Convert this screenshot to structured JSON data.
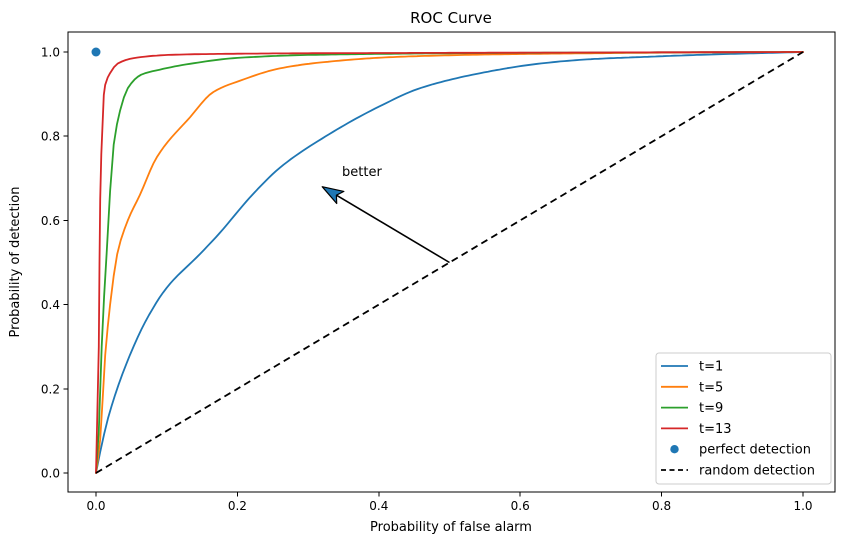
{
  "figure": {
    "title": "ROC Curve",
    "xlabel": "Probability of false alarm",
    "ylabel": "Probability of detection"
  },
  "chart_data": {
    "type": "line",
    "title": "ROC Curve",
    "xlabel": "Probability of false alarm",
    "ylabel": "Probability of detection",
    "xlim": [
      -0.05,
      1.05
    ],
    "ylim": [
      -0.05,
      1.05
    ],
    "xticks": [
      0.0,
      0.2,
      0.4,
      0.6,
      0.8,
      1.0
    ],
    "yticks": [
      0.0,
      0.2,
      0.4,
      0.6,
      0.8,
      1.0
    ],
    "grid": false,
    "legend_position": "lower right",
    "background": "#ffffff",
    "axes_color": "#000000",
    "series": [
      {
        "name": "t=1",
        "color": "#1f77b4",
        "style": "solid",
        "x": [
          0,
          0.006,
          0.017,
          0.032,
          0.048,
          0.07,
          0.1,
          0.147,
          0.175,
          0.218,
          0.26,
          0.33,
          0.4,
          0.46,
          0.56,
          0.63,
          0.7,
          0.77,
          0.85,
          0.93,
          1.0
        ],
        "y": [
          0,
          0.05,
          0.13,
          0.21,
          0.28,
          0.36,
          0.44,
          0.52,
          0.57,
          0.655,
          0.725,
          0.805,
          0.87,
          0.915,
          0.955,
          0.973,
          0.983,
          0.988,
          0.993,
          0.997,
          1.0
        ]
      },
      {
        "name": "t=5",
        "color": "#ff7f0e",
        "style": "solid",
        "x": [
          0,
          0.006,
          0.013,
          0.02,
          0.03,
          0.045,
          0.062,
          0.086,
          0.133,
          0.166,
          0.204,
          0.26,
          0.317,
          0.42,
          0.55,
          0.7,
          0.85,
          1.0
        ],
        "y": [
          0,
          0.08,
          0.28,
          0.4,
          0.52,
          0.6,
          0.66,
          0.75,
          0.845,
          0.905,
          0.932,
          0.961,
          0.975,
          0.988,
          0.994,
          0.997,
          0.999,
          1.0
        ]
      },
      {
        "name": "t=9",
        "color": "#2ca02c",
        "style": "solid",
        "x": [
          0,
          0.004,
          0.008,
          0.015,
          0.025,
          0.034,
          0.045,
          0.064,
          0.09,
          0.133,
          0.2,
          0.3,
          0.5,
          0.75,
          1.0
        ],
        "y": [
          0,
          0.1,
          0.3,
          0.52,
          0.78,
          0.86,
          0.914,
          0.946,
          0.958,
          0.972,
          0.986,
          0.993,
          0.997,
          0.999,
          1.0
        ]
      },
      {
        "name": "t=13",
        "color": "#d62728",
        "style": "solid",
        "x": [
          0,
          0.004,
          0.005,
          0.006,
          0.0075,
          0.011,
          0.013,
          0.02,
          0.031,
          0.059,
          0.102,
          0.15,
          0.3,
          0.5,
          0.75,
          1.0
        ],
        "y": [
          0,
          0.3,
          0.5,
          0.65,
          0.757,
          0.898,
          0.922,
          0.95,
          0.973,
          0.987,
          0.993,
          0.995,
          0.997,
          0.998,
          0.999,
          1.0
        ]
      }
    ],
    "scatter": [
      {
        "name": "perfect detection",
        "x": 0.0,
        "y": 1.0,
        "color": "#1f77b4",
        "marker": "circle"
      }
    ],
    "reference_lines": [
      {
        "name": "random detection",
        "from": [
          0,
          0
        ],
        "to": [
          1,
          1
        ],
        "color": "#000000",
        "style": "dashed"
      }
    ],
    "annotations": [
      {
        "text": "better",
        "text_xy": [
          0.348,
          0.705
        ],
        "arrow_tail_xy": [
          0.5,
          0.5
        ],
        "arrow_head_xy": [
          0.32,
          0.68
        ],
        "arrow_color": "#000000",
        "head_fill": "#1f77b4"
      }
    ],
    "legend": {
      "entries": [
        {
          "label": "t=1",
          "type": "line",
          "color": "#1f77b4"
        },
        {
          "label": "t=5",
          "type": "line",
          "color": "#ff7f0e"
        },
        {
          "label": "t=9",
          "type": "line",
          "color": "#2ca02c"
        },
        {
          "label": "t=13",
          "type": "line",
          "color": "#d62728"
        },
        {
          "label": "perfect detection",
          "type": "marker",
          "color": "#1f77b4"
        },
        {
          "label": "random detection",
          "type": "dashed",
          "color": "#000000"
        }
      ]
    }
  }
}
